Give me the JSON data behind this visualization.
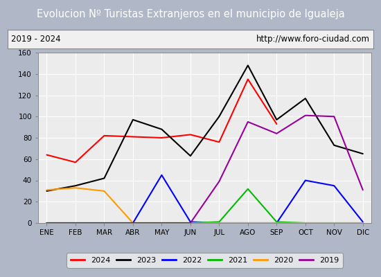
{
  "title": "Evolucion Nº Turistas Extranjeros en el municipio de Igualeja",
  "subtitle_left": "2019 - 2024",
  "subtitle_right": "http://www.foro-ciudad.com",
  "months": [
    "ENE",
    "FEB",
    "MAR",
    "ABR",
    "MAY",
    "JUN",
    "JUL",
    "AGO",
    "SEP",
    "OCT",
    "NOV",
    "DIC"
  ],
  "series": {
    "2024": [
      64,
      57,
      82,
      81,
      80,
      83,
      76,
      135,
      93,
      null,
      null,
      null
    ],
    "2023": [
      30,
      35,
      42,
      97,
      88,
      63,
      100,
      148,
      97,
      117,
      73,
      65
    ],
    "2022": [
      0,
      0,
      0,
      0,
      45,
      1,
      0,
      0,
      0,
      40,
      35,
      1
    ],
    "2021": [
      0,
      0,
      0,
      0,
      0,
      0,
      1,
      32,
      1,
      0,
      0,
      0
    ],
    "2020": [
      31,
      33,
      30,
      0,
      0,
      0,
      0,
      0,
      0,
      0,
      0,
      0
    ],
    "2019": [
      0,
      0,
      0,
      0,
      0,
      0,
      39,
      95,
      84,
      101,
      100,
      31
    ]
  },
  "colors": {
    "2024": "#ff0000",
    "2023": "#000000",
    "2022": "#0000ff",
    "2021": "#00bb00",
    "2020": "#ff9900",
    "2019": "#990099"
  },
  "ylim": [
    0,
    160
  ],
  "yticks": [
    0,
    20,
    40,
    60,
    80,
    100,
    120,
    140,
    160
  ],
  "title_bg": "#4d8cc8",
  "title_color": "#ffffff",
  "plot_bg": "#ececec",
  "grid_color": "#ffffff",
  "outer_bg": "#b0b8c8",
  "legend_bg": "#f0f0f0",
  "subtitle_bg": "#f0f0f0"
}
